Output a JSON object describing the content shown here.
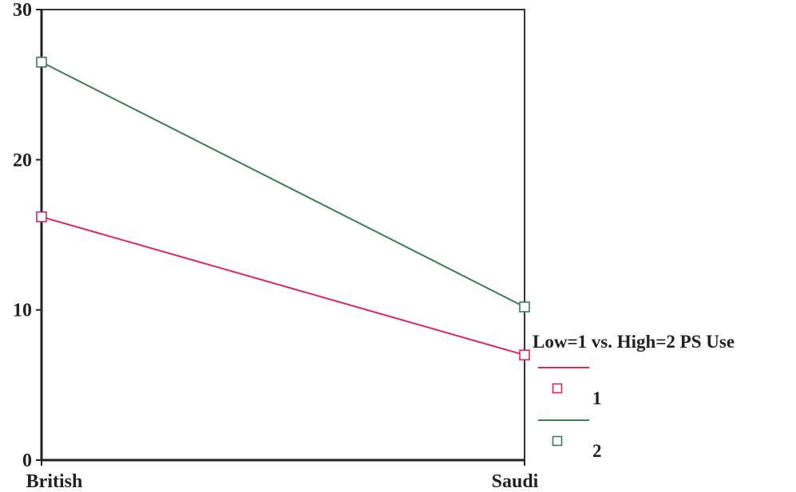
{
  "chart_data": {
    "type": "line",
    "categories": [
      "British",
      "Saudi"
    ],
    "ylim": [
      0,
      30
    ],
    "yticks": [
      "0",
      "10",
      "20",
      "30"
    ],
    "grid": false,
    "legend": {
      "title": "Low=1 vs. High=2 PS Use",
      "placement": "right"
    },
    "series": [
      {
        "name": "1",
        "values": [
          16.2,
          7.0
        ],
        "color": "#e0245e",
        "marker": "square"
      },
      {
        "name": "2",
        "values": [
          26.5,
          10.2
        ],
        "color": "#3e7a5a",
        "marker": "square"
      }
    ]
  }
}
